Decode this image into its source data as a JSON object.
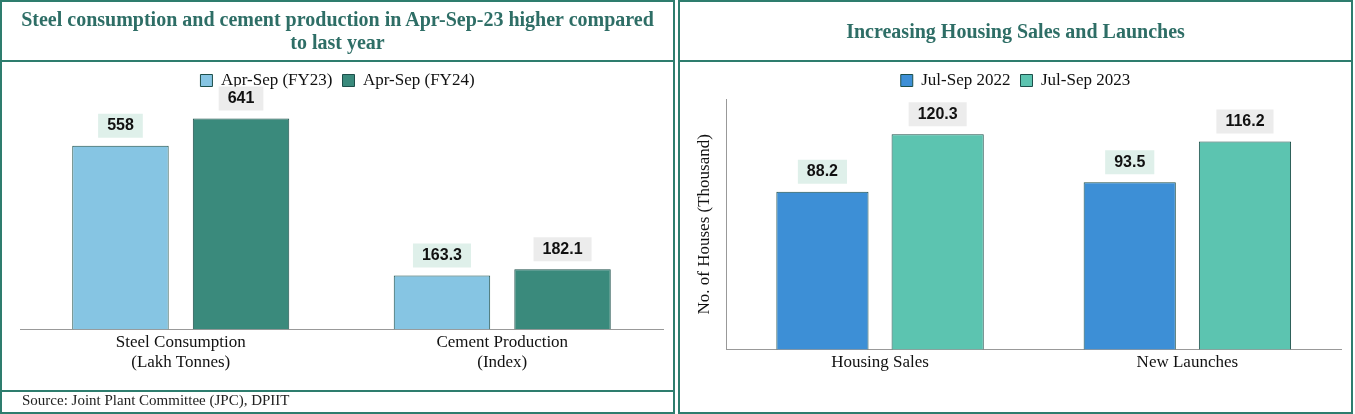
{
  "chart_data": [
    {
      "type": "bar",
      "title": "Steel consumption and cement production in Apr-Sep-23 higher compared to last year",
      "categories": [
        "Steel Consumption (Lakh Tonnes)",
        "Cement Production (Index)"
      ],
      "series": [
        {
          "name": "Apr-Sep (FY23)",
          "color": "#86c5e3",
          "values": [
            558,
            163.3
          ]
        },
        {
          "name": "Apr-Sep (FY24)",
          "color": "#3a8a7c",
          "values": [
            641,
            182.1
          ]
        }
      ],
      "data_labels": true,
      "legend": "top",
      "grid": false,
      "tick_labels": "x",
      "annotations": [
        "Source: Joint Plant Committee (JPC), DPIIT"
      ]
    },
    {
      "type": "bar",
      "title": "Increasing Housing Sales and Launches",
      "ylabel": "No. of Houses (Thousand)",
      "categories": [
        "Housing Sales",
        "New Launches"
      ],
      "series": [
        {
          "name": "Jul-Sep 2022",
          "color": "#3d8fd6",
          "values": [
            88.2,
            93.5
          ]
        },
        {
          "name": "Jul-Sep 2023",
          "color": "#5cc4b0",
          "values": [
            120.3,
            116.2
          ]
        }
      ],
      "data_labels": true,
      "legend": "top",
      "grid": false,
      "tick_labels": "x"
    }
  ]
}
